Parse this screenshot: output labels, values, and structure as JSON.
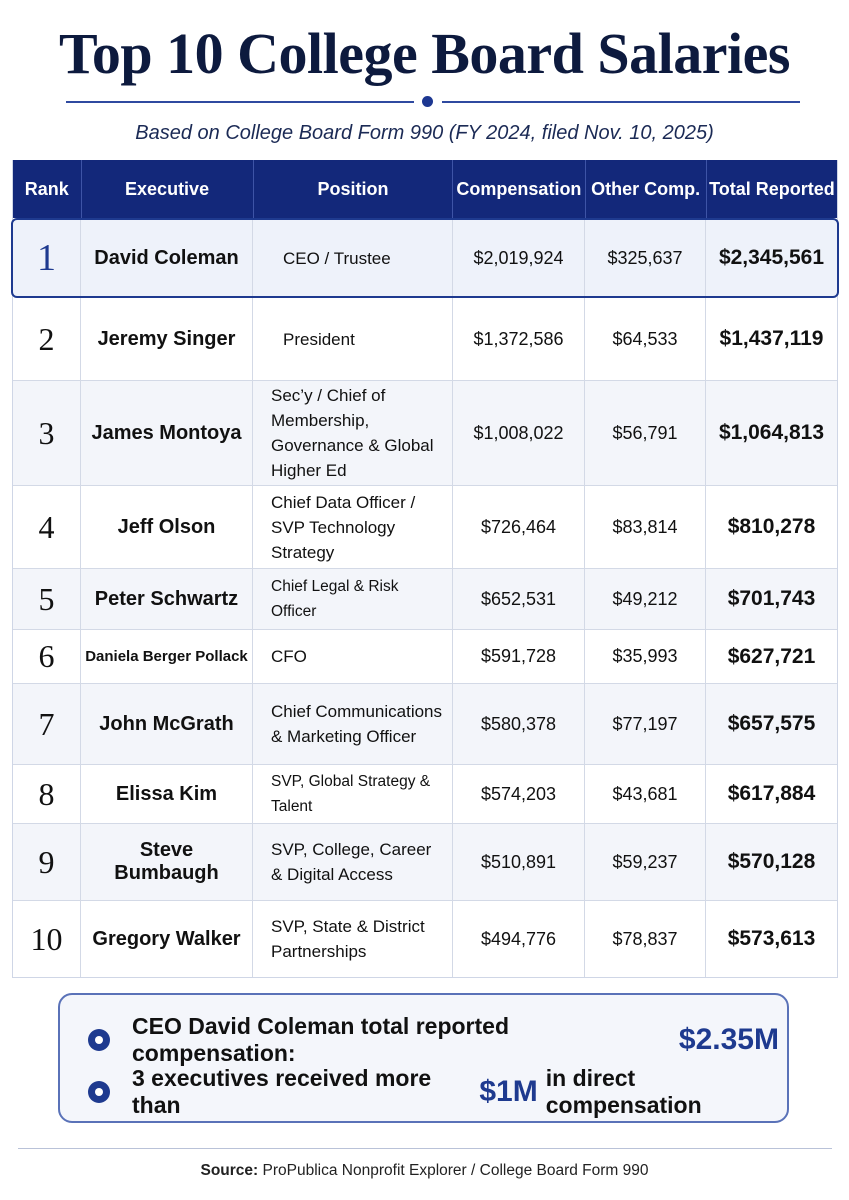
{
  "title": "Top 10 College Board Salaries",
  "subtitle": "Based on College Board Form 990 (FY 2024, filed Nov. 10, 2025)",
  "table": {
    "headers": {
      "rank": "Rank",
      "executive": "Executive",
      "position": "Position",
      "compensation": "Compensation",
      "other": "Other Comp.",
      "total": "Total Reported"
    },
    "rows": [
      {
        "rank": "1",
        "executive": "David Coleman",
        "position": "CEO / Trustee",
        "compensation": "$2,019,924",
        "other": "$325,637",
        "total": "$2,345,561"
      },
      {
        "rank": "2",
        "executive": "Jeremy Singer",
        "position": "President",
        "compensation": "$1,372,586",
        "other": "$64,533",
        "total": "$1,437,119"
      },
      {
        "rank": "3",
        "executive": "James Montoya",
        "position": "Sec’y / Chief of Membership, Governance & Global Higher Ed",
        "compensation": "$1,008,022",
        "other": "$56,791",
        "total": "$1,064,813"
      },
      {
        "rank": "4",
        "executive": "Jeff Olson",
        "position": "Chief Data Officer / SVP Technology Strategy",
        "compensation": "$726,464",
        "other": "$83,814",
        "total": "$810,278"
      },
      {
        "rank": "5",
        "executive": "Peter Schwartz",
        "position": "Chief Legal & Risk Officer",
        "compensation": "$652,531",
        "other": "$49,212",
        "total": "$701,743"
      },
      {
        "rank": "6",
        "executive": "Daniela Berger Pollack",
        "position": "CFO",
        "compensation": "$591,728",
        "other": "$35,993",
        "total": "$627,721"
      },
      {
        "rank": "7",
        "executive": "John McGrath",
        "position": "Chief Communications & Marketing Officer",
        "compensation": "$580,378",
        "other": "$77,197",
        "total": "$657,575"
      },
      {
        "rank": "8",
        "executive": "Elissa Kim",
        "position": "SVP, Global Strategy & Talent",
        "compensation": "$574,203",
        "other": "$43,681",
        "total": "$617,884"
      },
      {
        "rank": "9",
        "executive": "Steve Bumbaugh",
        "position": "SVP, College, Career & Digital Access",
        "compensation": "$510,891",
        "other": "$59,237",
        "total": "$570,128"
      },
      {
        "rank": "10",
        "executive": "Gregory Walker",
        "position": "SVP, State & District Partnerships",
        "compensation": "$494,776",
        "other": "$78,837",
        "total": "$573,613"
      }
    ]
  },
  "summary": {
    "line1_text": "CEO David Coleman total reported compensation:",
    "line1_value": "$2.35M",
    "line2_pre": "3 executives received more than",
    "line2_value": "$1M",
    "line2_post": "in direct compensation"
  },
  "source": {
    "label": "Source:",
    "text": "ProPublica Nonprofit Explorer / College Board Form 990"
  },
  "colors": {
    "header_bg": "#13287a",
    "accent": "#1e3a8f",
    "title": "#0d1a3e"
  }
}
